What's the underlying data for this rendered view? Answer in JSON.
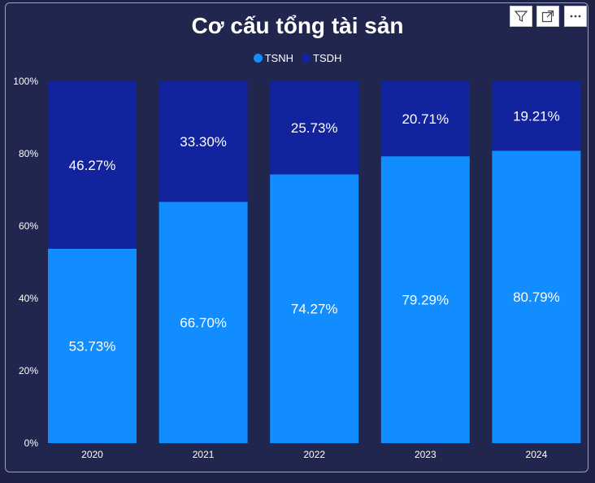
{
  "toolbar": {
    "filter_icon": "filter-icon",
    "focus_icon": "focus-mode-icon",
    "more_icon": "more-options-icon"
  },
  "chart_data": {
    "type": "bar",
    "stacked": true,
    "title": "Cơ cấu tổng tài sản",
    "categories": [
      "2020",
      "2021",
      "2022",
      "2023",
      "2024"
    ],
    "series": [
      {
        "name": "TSNH",
        "color": "#118dff",
        "values": [
          53.73,
          66.7,
          74.27,
          79.29,
          80.79
        ],
        "labels": [
          "53.73%",
          "66.70%",
          "74.27%",
          "79.29%",
          "80.79%"
        ]
      },
      {
        "name": "TSDH",
        "color": "#12239e",
        "values": [
          46.27,
          33.3,
          25.73,
          20.71,
          19.21
        ],
        "labels": [
          "46.27%",
          "33.30%",
          "25.73%",
          "20.71%",
          "19.21%"
        ]
      }
    ],
    "ylim": [
      0,
      100
    ],
    "yticks": [
      "0%",
      "20%",
      "40%",
      "60%",
      "80%",
      "100%"
    ],
    "legend_position": "top-center",
    "grid": false
  }
}
